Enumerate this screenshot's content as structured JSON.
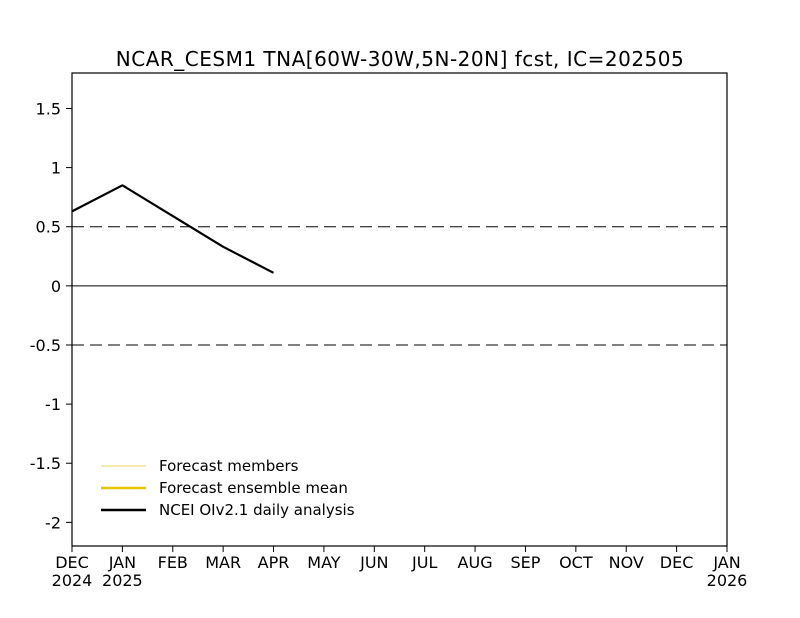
{
  "chart_data": {
    "type": "line",
    "title": "NCAR_CESM1 TNA[60W-30W,5N-20N] fcst, IC=202505",
    "x_months": [
      "DEC",
      "JAN",
      "FEB",
      "MAR",
      "APR",
      "MAY",
      "JUN",
      "JUL",
      "AUG",
      "SEP",
      "OCT",
      "NOV",
      "DEC",
      "JAN"
    ],
    "x_years": {
      "0": "2024",
      "1": "2025",
      "13": "2026"
    },
    "ylim": [
      -2.2,
      1.8
    ],
    "y_ticks": [
      1.5,
      1,
      0.5,
      0,
      -0.5,
      -1,
      -1.5,
      -2
    ],
    "y_tick_labels": [
      "1.5",
      "1",
      "0.5",
      "0",
      "-0.5",
      "-1",
      "-1.5",
      "-2"
    ],
    "reference_lines": [
      {
        "y": 0.5,
        "style": "dashed"
      },
      {
        "y": 0,
        "style": "solid"
      },
      {
        "y": -0.5,
        "style": "dashed"
      }
    ],
    "series": [
      {
        "name": "NCEI OIv2.1 daily analysis",
        "color": "#000000",
        "x": [
          0,
          1,
          2,
          3,
          4
        ],
        "values": [
          0.63,
          0.85,
          0.59,
          0.33,
          0.11
        ]
      }
    ],
    "legend": [
      {
        "label": "Forecast members",
        "color": "#e8d75a"
      },
      {
        "label": "Forecast ensemble mean",
        "color": "#e6c400"
      },
      {
        "label": "NCEI OIv2.1 daily analysis",
        "color": "#000000"
      }
    ],
    "legend_position": "bottom-left"
  }
}
